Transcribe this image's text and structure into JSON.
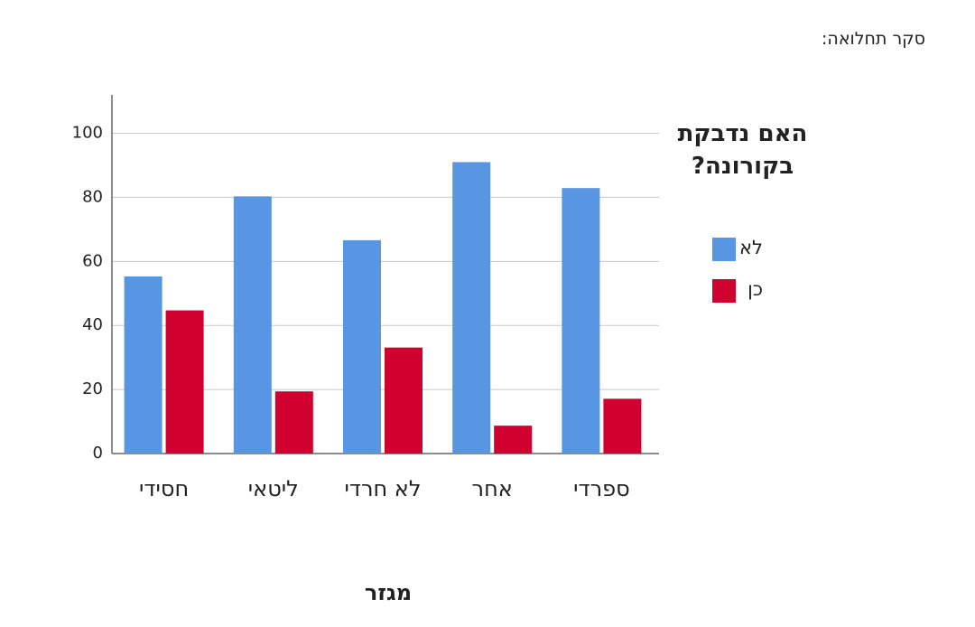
{
  "chart_data": {
    "type": "bar",
    "title": "סקר תחלואה:",
    "x_label": "מגזר",
    "legend_title": "האם נדבקת בקורונה?",
    "categories": [
      "חסידי",
      "ליטאי",
      "לא חרדי",
      "אחר",
      "ספרדי"
    ],
    "series": [
      {
        "name": "לא",
        "color": "#5896e4",
        "values": [
          55.3,
          80.3,
          66.6,
          91.0,
          82.9
        ]
      },
      {
        "name": "כן",
        "color": "#d0002f",
        "values": [
          44.7,
          19.4,
          33.1,
          8.7,
          17.1
        ]
      }
    ],
    "ylim": [
      0,
      112
    ],
    "yticks": [
      0,
      20,
      40,
      60,
      80,
      100
    ],
    "grid": true
  }
}
